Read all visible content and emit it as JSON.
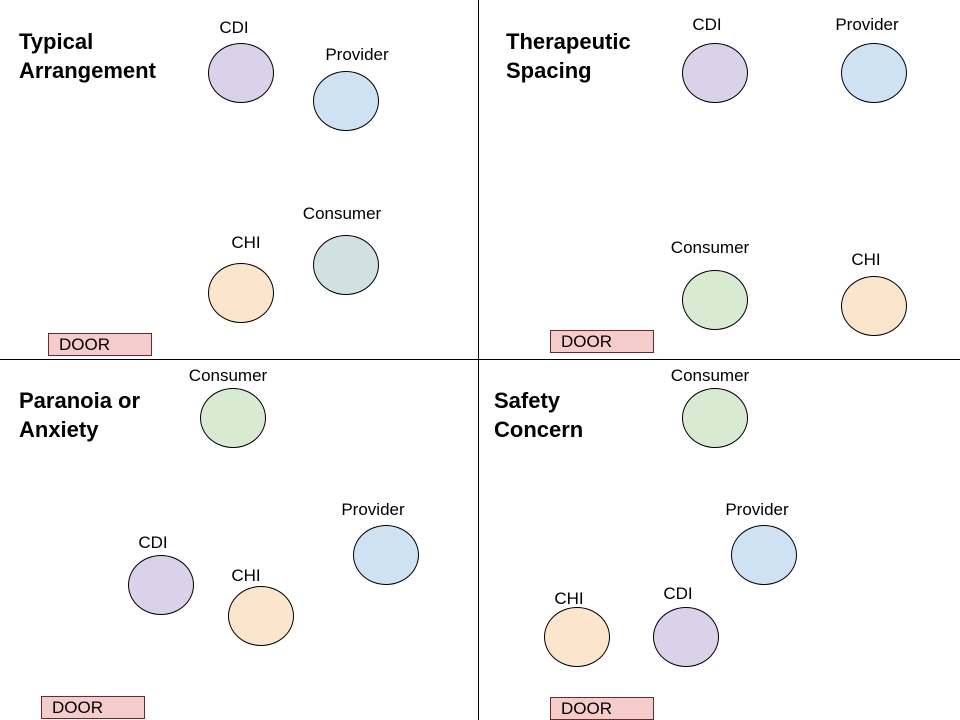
{
  "colors": {
    "CDI": "#d9d2e9",
    "Provider": "#cfe2f3",
    "Consumer_typical": "#d0e0e3",
    "Consumer": "#d9ead3",
    "CHI": "#fce5cd",
    "door_fill": "#f4cccc"
  },
  "quadrants": [
    {
      "title": "Typical\nArrangement",
      "door_label": "DOOR",
      "people": [
        {
          "label": "CDI",
          "color": "CDI"
        },
        {
          "label": "Provider",
          "color": "Provider"
        },
        {
          "label": "Consumer",
          "color": "Consumer_typical"
        },
        {
          "label": "CHI",
          "color": "CHI"
        }
      ]
    },
    {
      "title": "Therapeutic\nSpacing",
      "door_label": "DOOR",
      "people": [
        {
          "label": "CDI",
          "color": "CDI"
        },
        {
          "label": "Provider",
          "color": "Provider"
        },
        {
          "label": "Consumer",
          "color": "Consumer"
        },
        {
          "label": "CHI",
          "color": "CHI"
        }
      ]
    },
    {
      "title": "Paranoia or\nAnxiety",
      "door_label": "DOOR",
      "people": [
        {
          "label": "Consumer",
          "color": "Consumer"
        },
        {
          "label": "Provider",
          "color": "Provider"
        },
        {
          "label": "CDI",
          "color": "CDI"
        },
        {
          "label": "CHI",
          "color": "CHI"
        }
      ]
    },
    {
      "title": "Safety\nConcern",
      "door_label": "DOOR",
      "people": [
        {
          "label": "Consumer",
          "color": "Consumer"
        },
        {
          "label": "Provider",
          "color": "Provider"
        },
        {
          "label": "CHI",
          "color": "CHI"
        },
        {
          "label": "CDI",
          "color": "CDI"
        }
      ]
    }
  ]
}
